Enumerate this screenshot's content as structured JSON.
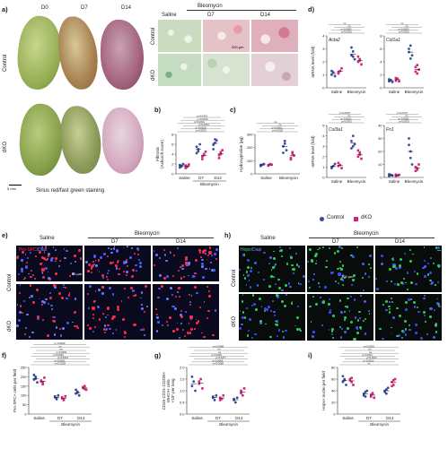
{
  "panels": {
    "a": "a)",
    "b": "b)",
    "c": "c)",
    "d": "d)",
    "e": "e)",
    "f": "f)",
    "g": "g)",
    "h": "h)",
    "i": "i)"
  },
  "a": {
    "cols": [
      "D0",
      "D7",
      "D14"
    ],
    "rows": [
      "Control",
      "dKO"
    ],
    "caption": "Sirius red/fast green staining",
    "scale": "5 mm",
    "micro_header_bleo": "Bleomycin",
    "micro_cols": [
      "Saline",
      "D7",
      "D14"
    ],
    "micro_rows": [
      "Control",
      "dKO"
    ],
    "micro_scale": "200 µm"
  },
  "b": {
    "ylabel": "Fibrosis\n(Ashcroft score)",
    "categories": [
      "Saline",
      "D7",
      "D14"
    ],
    "group": "Bleomycin",
    "p": [
      "p<0.0001",
      "p<0.0018",
      "p<0.0001",
      "p<0.0001",
      "p<0.0015",
      "p<0.0423"
    ],
    "yticks": [
      "0",
      "2",
      "4",
      "6",
      "8"
    ]
  },
  "c": {
    "ylabel": "Hydroxyproline (µg)",
    "categories": [
      "Saline",
      "Bleomycin"
    ],
    "p": [
      "p<0.0018",
      "p<0.0001",
      "ns",
      "ns"
    ],
    "yticks": [
      "0",
      "100",
      "200",
      "300"
    ]
  },
  "d": {
    "ylabel": "mRNA level (fold)",
    "genes": [
      "Acta2",
      "Col1a1",
      "Col3a1",
      "Fn1"
    ],
    "categories": [
      "Saline",
      "Bleomycin"
    ],
    "p_acta2": [
      "p<0.0001",
      "p<0.0083",
      "ns",
      "ns"
    ],
    "p_col1a1": [
      "p<0.0001",
      "p<0.0003",
      "ns",
      "ns"
    ],
    "p_col3a1": [
      "p<0.0001",
      "p<0.0022",
      "ns",
      "p<0.0076"
    ],
    "p_fn1": [
      "p<0.0001",
      "p<0.0082",
      "ns",
      "p<0.0170"
    ],
    "yticks1": [
      "0",
      "1",
      "2",
      "3",
      "4"
    ],
    "yticks2": [
      "0",
      "2",
      "4",
      "6",
      "8"
    ],
    "yticks3": [
      "0",
      "1",
      "2",
      "3",
      "4",
      "5"
    ],
    "yticks4": [
      "0",
      "10",
      "20",
      "30",
      "40"
    ]
  },
  "legend": {
    "control": "Control",
    "dko": "dKO",
    "control_color": "#3a4a9c",
    "dko_color": "#d2267a"
  },
  "e": {
    "header_saline": "Saline",
    "header_bleo": "Bleomycin",
    "cols": [
      "D7",
      "D14"
    ],
    "rows": [
      "Control",
      "dKO"
    ],
    "stain_a": "Pro-SPC",
    "stain_b": "/Dapi",
    "scale": "50 µm"
  },
  "h": {
    "header_saline": "Saline",
    "header_bleo": "Bleomycin",
    "cols": [
      "D7",
      "D14"
    ],
    "rows": [
      "Control",
      "dKO"
    ],
    "stain_a": "Hopx",
    "stain_b": "/Dapi",
    "scale": "100 µm"
  },
  "f": {
    "ylabel": "Pro-SPC+ cells per field",
    "categories": [
      "Saline",
      "D7",
      "D14"
    ],
    "group": "Bleomycin",
    "p": [
      "p<0.0118",
      "p<0.0001",
      "p<0.0001",
      "p<0.0052",
      "p<0.0001",
      "ns",
      "ns",
      "p<0.0029"
    ],
    "yticks": [
      "0",
      "50",
      "100",
      "150",
      "200",
      "250"
    ]
  },
  "g": {
    "ylabel": "CD45-CD31-CD326+\nMHCII+ cells\n×10⁵ per lung",
    "categories": [
      "Saline",
      "D7",
      "D14"
    ],
    "group": "Bleomycin",
    "p": [
      "p<0.0088",
      "p<0.0004",
      "p<0.0077",
      "p<0.0025",
      "ns",
      "ns",
      "p<0.0088"
    ],
    "yticks": [
      "0.0",
      "0.5",
      "1.0",
      "1.5",
      "2.0"
    ]
  },
  "i": {
    "ylabel": "Hopx+ nuclei per field",
    "categories": [
      "Saline",
      "D7",
      "D14"
    ],
    "group": "Bleomycin",
    "p": [
      "ns",
      "p<0.0012",
      "p<0.0011",
      "p<0.0021",
      "ns",
      "ns",
      "p<0.0052"
    ],
    "yticks": [
      "0",
      "20",
      "40",
      "60",
      "80"
    ]
  },
  "chart_data": [
    {
      "panel": "b",
      "type": "scatter",
      "categories": [
        "Saline",
        "D7",
        "D14"
      ],
      "ylim": [
        0,
        8
      ],
      "series": [
        {
          "name": "Control",
          "values": [
            [
              1.3,
              1.6,
              2.0,
              1.8,
              1.5
            ],
            [
              4.2,
              5.0,
              6.0,
              5.5,
              4.6
            ],
            [
              5.0,
              6.3,
              6.8,
              5.9,
              7.0
            ]
          ]
        },
        {
          "name": "dKO",
          "values": [
            [
              1.2,
              1.5,
              1.9,
              1.7,
              1.4
            ],
            [
              3.0,
              3.8,
              4.5,
              3.5,
              4.0
            ],
            [
              3.2,
              4.0,
              4.8,
              3.8,
              4.4
            ]
          ]
        }
      ]
    },
    {
      "panel": "c",
      "type": "scatter",
      "categories": [
        "Saline",
        "Bleomycin"
      ],
      "ylim": [
        0,
        300
      ],
      "series": [
        {
          "name": "Control",
          "values": [
            [
              60,
              70,
              75,
              68
            ],
            [
              210,
              250,
              180,
              160,
              230
            ]
          ]
        },
        {
          "name": "dKO",
          "values": [
            [
              62,
              74,
              70,
              66
            ],
            [
              120,
              150,
              140,
              110,
              165
            ]
          ]
        }
      ]
    },
    {
      "panel": "d-Acta2",
      "type": "scatter",
      "categories": [
        "Saline",
        "Bleomycin"
      ],
      "ylim": [
        0,
        4
      ],
      "series": [
        {
          "name": "Control",
          "values": [
            [
              1.0,
              1.2,
              0.9,
              1.3
            ],
            [
              2.5,
              2.8,
              2.2,
              3.1,
              2.4
            ]
          ]
        },
        {
          "name": "dKO",
          "values": [
            [
              1.1,
              1.3,
              1.5,
              1.2
            ],
            [
              2.0,
              2.2,
              1.8,
              2.4,
              2.1
            ]
          ]
        }
      ]
    },
    {
      "panel": "d-Col1a1",
      "type": "scatter",
      "categories": [
        "Saline",
        "Bleomycin"
      ],
      "ylim": [
        0,
        8
      ],
      "series": [
        {
          "name": "Control",
          "values": [
            [
              1.0,
              1.2,
              0.9,
              1.3
            ],
            [
              5.5,
              6.5,
              5.0,
              6.0,
              4.5
            ]
          ]
        },
        {
          "name": "dKO",
          "values": [
            [
              1.1,
              1.4,
              1.0,
              1.5
            ],
            [
              2.5,
              3.5,
              2.8,
              3.2,
              2.2
            ]
          ]
        }
      ]
    },
    {
      "panel": "d-Col3a1",
      "type": "scatter",
      "categories": [
        "Saline",
        "Bleomycin"
      ],
      "ylim": [
        0,
        5
      ],
      "series": [
        {
          "name": "Control",
          "values": [
            [
              1.0,
              1.1,
              1.3,
              0.9
            ],
            [
              3.5,
              4.0,
              3.2,
              2.8,
              3.0
            ]
          ]
        },
        {
          "name": "dKO",
          "values": [
            [
              1.1,
              1.2,
              0.9,
              1.4
            ],
            [
              2.0,
              2.4,
              1.8,
              2.6,
              2.2
            ]
          ]
        }
      ]
    },
    {
      "panel": "d-Fn1",
      "type": "scatter",
      "categories": [
        "Saline",
        "Bleomycin"
      ],
      "ylim": [
        0,
        40
      ],
      "series": [
        {
          "name": "Control",
          "values": [
            [
              1,
              2,
              1.5,
              2.5
            ],
            [
              25,
              15,
              10,
              30,
              20
            ]
          ]
        },
        {
          "name": "dKO",
          "values": [
            [
              1,
              1.5,
              2,
              2.2
            ],
            [
              8,
              6,
              10,
              5,
              7
            ]
          ]
        }
      ]
    },
    {
      "panel": "f",
      "type": "scatter",
      "categories": [
        "Saline",
        "D7",
        "D14"
      ],
      "ylim": [
        0,
        250
      ],
      "series": [
        {
          "name": "Control",
          "values": [
            [
              185,
              200,
              170,
              210,
              190
            ],
            [
              90,
              80,
              100,
              95,
              85
            ],
            [
              110,
              120,
              100,
              130,
              115
            ]
          ]
        },
        {
          "name": "dKO",
          "values": [
            [
              180,
              160,
              195,
              175,
              170
            ],
            [
              85,
              75,
              95,
              90,
              80
            ],
            [
              140,
              150,
              130,
              145,
              135
            ]
          ]
        }
      ]
    },
    {
      "panel": "g",
      "type": "scatter",
      "categories": [
        "Saline",
        "D7",
        "D14"
      ],
      "ylim": [
        0,
        2
      ],
      "series": [
        {
          "name": "Control",
          "values": [
            [
              1.2,
              1.4,
              1.0,
              1.6
            ],
            [
              0.7,
              0.6,
              0.8,
              0.75
            ],
            [
              0.6,
              0.5,
              0.7,
              0.65
            ]
          ]
        },
        {
          "name": "dKO",
          "values": [
            [
              1.3,
              1.5,
              1.1,
              1.4
            ],
            [
              0.7,
              0.65,
              0.8,
              0.6
            ],
            [
              1.0,
              0.8,
              1.1,
              0.9
            ]
          ]
        }
      ]
    },
    {
      "panel": "i",
      "type": "scatter",
      "categories": [
        "Saline",
        "D7",
        "D14"
      ],
      "ylim": [
        0,
        80
      ],
      "series": [
        {
          "name": "Control",
          "values": [
            [
              55,
              60,
              50,
              65,
              58
            ],
            [
              35,
              30,
              40,
              32,
              38
            ],
            [
              40,
              35,
              45,
              38,
              42
            ]
          ]
        },
        {
          "name": "dKO",
          "values": [
            [
              60,
              55,
              50,
              58,
              62
            ],
            [
              30,
              35,
              28,
              33,
              36
            ],
            [
              55,
              50,
              60,
              48,
              58
            ]
          ]
        }
      ]
    }
  ]
}
